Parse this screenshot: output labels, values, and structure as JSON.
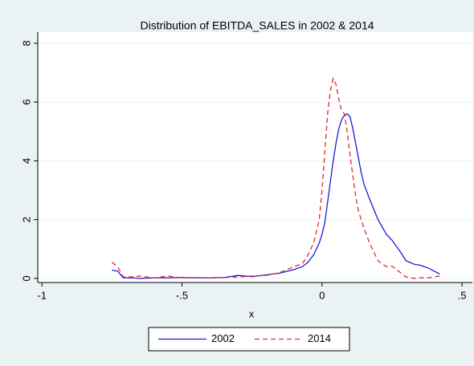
{
  "chart_data": {
    "type": "line",
    "title": "Distribution of EBITDA_SALES in 2002 & 2014",
    "x_label": "x",
    "x": [
      -0.75,
      -0.73,
      -0.71,
      -0.68,
      -0.65,
      -0.6,
      -0.55,
      -0.5,
      -0.45,
      -0.4,
      -0.35,
      -0.3,
      -0.25,
      -0.2,
      -0.15,
      -0.1,
      -0.07,
      -0.05,
      -0.03,
      -0.01,
      0,
      0.01,
      0.02,
      0.03,
      0.04,
      0.05,
      0.06,
      0.07,
      0.08,
      0.09,
      0.1,
      0.11,
      0.12,
      0.13,
      0.14,
      0.15,
      0.17,
      0.2,
      0.23,
      0.25,
      0.28,
      0.3,
      0.33,
      0.35,
      0.38,
      0.4,
      0.42
    ],
    "series": [
      {
        "name": "2002",
        "color": "#1a1ad8",
        "style": "solid",
        "values": [
          0.28,
          0.25,
          0.02,
          0.02,
          0.0,
          0.02,
          0.02,
          0.03,
          0.02,
          0.02,
          0.03,
          0.1,
          0.06,
          0.12,
          0.18,
          0.3,
          0.4,
          0.55,
          0.8,
          1.2,
          1.5,
          1.9,
          2.6,
          3.3,
          4.0,
          4.6,
          5.1,
          5.4,
          5.55,
          5.6,
          5.5,
          5.1,
          4.6,
          4.1,
          3.6,
          3.2,
          2.7,
          2.0,
          1.5,
          1.3,
          0.9,
          0.6,
          0.48,
          0.45,
          0.35,
          0.25,
          0.15
        ]
      },
      {
        "name": "2014",
        "color": "#e8242a",
        "style": "dashed",
        "values": [
          0.55,
          0.4,
          0.05,
          0.05,
          0.08,
          0.02,
          0.08,
          0.02,
          0.03,
          0.02,
          0.03,
          0.05,
          0.08,
          0.1,
          0.2,
          0.4,
          0.5,
          0.8,
          1.2,
          2.0,
          3.0,
          4.3,
          5.6,
          6.4,
          6.8,
          6.6,
          6.1,
          5.7,
          5.6,
          5.0,
          4.2,
          3.5,
          2.8,
          2.3,
          2.0,
          1.7,
          1.2,
          0.6,
          0.4,
          0.42,
          0.2,
          0.05,
          0.0,
          0.02,
          0.02,
          0.05,
          0.08
        ]
      }
    ],
    "xlim": [
      -1.015,
      0.537
    ],
    "ylim": [
      -0.14,
      8.38
    ],
    "xticks": [
      -1,
      {
        "value": -0.5,
        "label": "-.5"
      },
      0,
      {
        "value": 0.5,
        "label": ".5"
      }
    ],
    "yticks": [
      0,
      2,
      4,
      6,
      8
    ],
    "grid": true,
    "legend": "bottom"
  }
}
